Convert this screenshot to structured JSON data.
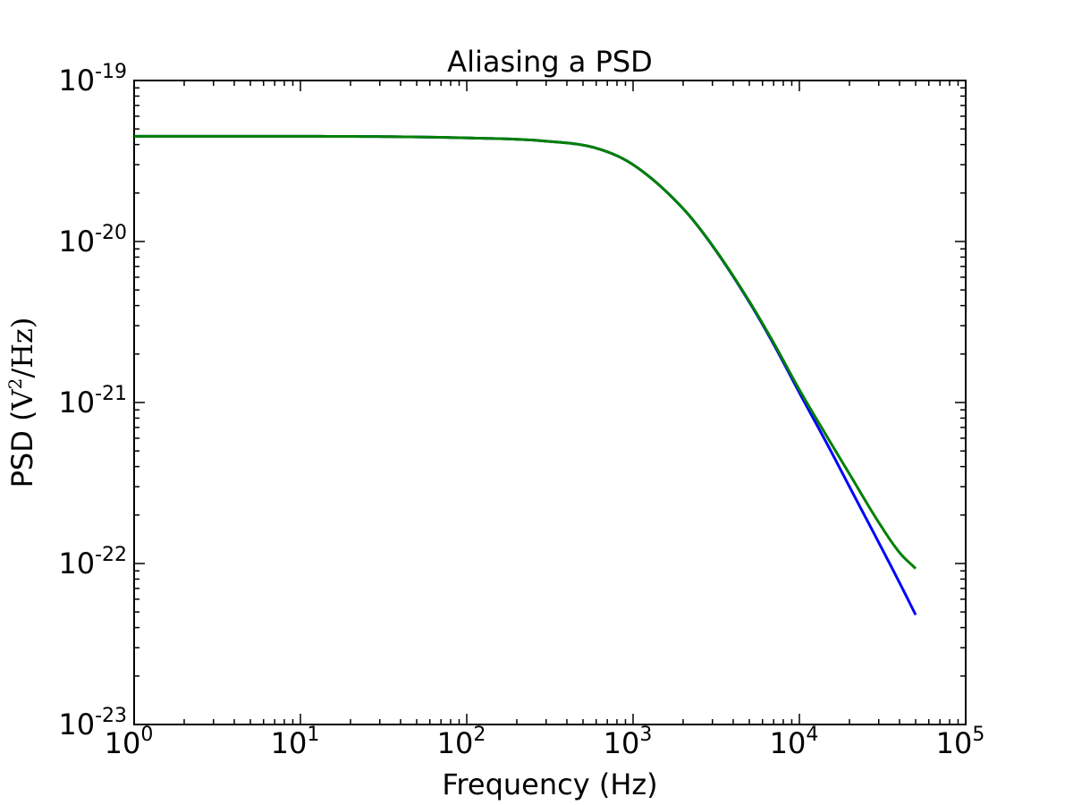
{
  "chart_data": {
    "type": "line",
    "title": "Aliasing a PSD",
    "xlabel": "Frequency (Hz)",
    "ylabel_prefix": "PSD (",
    "ylabel_unit": "V",
    "ylabel_unit_exp": "2",
    "ylabel_suffix": "/Hz)",
    "xscale": "log",
    "yscale": "log",
    "xlim": [
      1,
      100000
    ],
    "ylim": [
      1e-23,
      1e-19
    ],
    "grid": false,
    "x_ticks": [
      {
        "base": "10",
        "exp": "0",
        "value": 1
      },
      {
        "base": "10",
        "exp": "1",
        "value": 10
      },
      {
        "base": "10",
        "exp": "2",
        "value": 100
      },
      {
        "base": "10",
        "exp": "3",
        "value": 1000
      },
      {
        "base": "10",
        "exp": "4",
        "value": 10000
      },
      {
        "base": "10",
        "exp": "5",
        "value": 100000
      }
    ],
    "y_ticks": [
      {
        "base": "10",
        "exp": "-19",
        "value": 1e-19
      },
      {
        "base": "10",
        "exp": "-20",
        "value": 1e-20
      },
      {
        "base": "10",
        "exp": "-21",
        "value": 1e-21
      },
      {
        "base": "10",
        "exp": "-22",
        "value": 1e-22
      },
      {
        "base": "10",
        "exp": "-23",
        "value": 1e-23
      }
    ],
    "series": [
      {
        "color": "#0000ff",
        "x": [
          1,
          10,
          100,
          300,
          600,
          1000,
          2000,
          3000,
          5000,
          7000,
          10000,
          15000,
          20000,
          30000,
          40000,
          50000
        ],
        "y": [
          4.5e-20,
          4.5e-20,
          4.4e-20,
          4.2e-20,
          3.8e-20,
          3e-20,
          1.6e-20,
          9.4e-21,
          4.2e-21,
          2.3e-21,
          1.15e-21,
          5.3e-22,
          3e-22,
          1.35e-22,
          7.6e-23,
          4.8e-23
        ]
      },
      {
        "color": "#008000",
        "x": [
          1,
          10,
          100,
          300,
          600,
          1000,
          2000,
          3000,
          5000,
          7000,
          10000,
          15000,
          20000,
          30000,
          40000,
          50000
        ],
        "y": [
          4.5e-20,
          4.5e-20,
          4.4e-20,
          4.2e-20,
          3.8e-20,
          3e-20,
          1.6e-20,
          9.45e-21,
          4.25e-21,
          2.35e-21,
          1.2e-21,
          5.9e-22,
          3.6e-22,
          1.8e-22,
          1.17e-22,
          9.3e-23
        ]
      }
    ]
  }
}
